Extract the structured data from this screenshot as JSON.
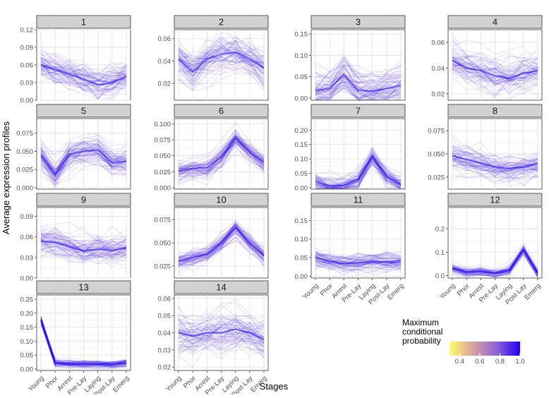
{
  "chart_data": {
    "type": "line",
    "ylabel": "Average expression profiles",
    "xlabel": "Stages",
    "categories": [
      "Young",
      "Phor",
      "Arrest",
      "Pre-Lay",
      "Laying",
      "Post-Lay",
      "Emerg"
    ],
    "legend": {
      "title": [
        "Maximum",
        "conditional",
        "probability"
      ],
      "ticks": [
        "0.4",
        "0.6",
        "0.8",
        "1.0"
      ],
      "tick_values": [
        0.4,
        0.6,
        0.8,
        1.0
      ],
      "range": [
        0.3,
        1.0
      ],
      "placement": "bottom-right",
      "colors": [
        "#ffff66",
        "#d8a0a0",
        "#8f62d6",
        "#2200ee"
      ]
    },
    "panels": [
      {
        "id": "1",
        "ylim": [
          0,
          0.12
        ],
        "yticks": [
          0.0,
          0.03,
          0.06,
          0.09,
          0.12
        ],
        "ytick_labels": [
          "0.00",
          "0.03",
          "0.06",
          "0.09",
          "0.12"
        ],
        "mean": [
          0.06,
          0.052,
          0.044,
          0.036,
          0.026,
          0.03,
          0.04
        ],
        "spread": 0.016,
        "xticks": false
      },
      {
        "id": "2",
        "ylim": [
          0.005,
          0.068
        ],
        "yticks": [
          0.02,
          0.04,
          0.06
        ],
        "ytick_labels": [
          "0.02",
          "0.04",
          "0.06"
        ],
        "mean": [
          0.042,
          0.03,
          0.042,
          0.046,
          0.048,
          0.042,
          0.034
        ],
        "spread": 0.011,
        "xticks": false
      },
      {
        "id": "3",
        "ylim": [
          -0.005,
          0.16
        ],
        "yticks": [
          0.0,
          0.05,
          0.1,
          0.15
        ],
        "ytick_labels": [
          "0.00",
          "0.05",
          "0.10",
          "0.15"
        ],
        "mean": [
          0.018,
          0.022,
          0.055,
          0.018,
          0.016,
          0.022,
          0.03
        ],
        "spread": 0.025,
        "xticks": false
      },
      {
        "id": "4",
        "ylim": [
          0.015,
          0.07
        ],
        "yticks": [
          0.02,
          0.04,
          0.06
        ],
        "ytick_labels": [
          "0.02",
          "0.04",
          "0.06"
        ],
        "mean": [
          0.046,
          0.04,
          0.038,
          0.034,
          0.032,
          0.036,
          0.038
        ],
        "spread": 0.008,
        "xticks": false
      },
      {
        "id": "5",
        "ylim": [
          -0.002,
          0.095
        ],
        "yticks": [
          0.0,
          0.025,
          0.05,
          0.075
        ],
        "ytick_labels": [
          "0.000",
          "0.025",
          "0.050",
          "0.075"
        ],
        "mean": [
          0.044,
          0.018,
          0.046,
          0.05,
          0.052,
          0.034,
          0.036
        ],
        "spread": 0.012,
        "xticks": false
      },
      {
        "id": "6",
        "ylim": [
          -0.002,
          0.108
        ],
        "yticks": [
          0.0,
          0.025,
          0.05,
          0.075,
          0.1
        ],
        "ytick_labels": [
          "0.000",
          "0.025",
          "0.050",
          "0.075",
          "0.100"
        ],
        "mean": [
          0.026,
          0.03,
          0.032,
          0.048,
          0.078,
          0.056,
          0.04
        ],
        "spread": 0.01,
        "xticks": false
      },
      {
        "id": "7",
        "ylim": [
          -0.005,
          0.24
        ],
        "yticks": [
          0.0,
          0.05,
          0.1,
          0.15,
          0.2
        ],
        "ytick_labels": [
          "0.00",
          "0.05",
          "0.10",
          "0.15",
          "0.20"
        ],
        "mean": [
          0.02,
          0.006,
          0.008,
          0.03,
          0.11,
          0.04,
          0.01
        ],
        "spread": 0.022,
        "xticks": false
      },
      {
        "id": "8",
        "ylim": [
          0.012,
          0.088
        ],
        "yticks": [
          0.025,
          0.05,
          0.075
        ],
        "ytick_labels": [
          "0.025",
          "0.050",
          "0.075"
        ],
        "mean": [
          0.048,
          0.044,
          0.04,
          0.036,
          0.034,
          0.036,
          0.04
        ],
        "spread": 0.009,
        "xticks": false
      },
      {
        "id": "9",
        "ylim": [
          0.0,
          0.103
        ],
        "yticks": [
          0.0,
          0.03,
          0.06,
          0.09
        ],
        "ytick_labels": [
          "0.00",
          "0.03",
          "0.06",
          "0.09"
        ],
        "mean": [
          0.054,
          0.052,
          0.046,
          0.04,
          0.042,
          0.04,
          0.044
        ],
        "spread": 0.013,
        "xticks": false
      },
      {
        "id": "10",
        "ylim": [
          0.012,
          0.088
        ],
        "yticks": [
          0.025,
          0.05,
          0.075
        ],
        "ytick_labels": [
          "0.025",
          "0.050",
          "0.075"
        ],
        "mean": [
          0.03,
          0.034,
          0.038,
          0.05,
          0.066,
          0.05,
          0.036
        ],
        "spread": 0.006,
        "xticks": false
      },
      {
        "id": "11",
        "ylim": [
          -0.005,
          0.185
        ],
        "yticks": [
          0.0,
          0.05,
          0.1,
          0.15
        ],
        "ytick_labels": [
          "0.00",
          "0.05",
          "0.10",
          "0.15"
        ],
        "mean": [
          0.05,
          0.04,
          0.034,
          0.036,
          0.04,
          0.038,
          0.038
        ],
        "spread": 0.014,
        "xticks": true
      },
      {
        "id": "12",
        "ylim": [
          -0.01,
          0.29
        ],
        "yticks": [
          0.0,
          0.1,
          0.2
        ],
        "ytick_labels": [
          "0.0",
          "0.1",
          "0.2"
        ],
        "mean": [
          0.032,
          0.016,
          0.018,
          0.01,
          0.022,
          0.11,
          0.012
        ],
        "spread": 0.012,
        "xticks": true
      },
      {
        "id": "13",
        "ylim": [
          -0.005,
          0.265
        ],
        "yticks": [
          0.0,
          0.05,
          0.1,
          0.15,
          0.2,
          0.25
        ],
        "ytick_labels": [
          "0.00",
          "0.05",
          "0.10",
          "0.15",
          "0.20",
          "0.25"
        ],
        "mean": [
          0.175,
          0.022,
          0.018,
          0.018,
          0.018,
          0.016,
          0.022
        ],
        "spread": 0.008,
        "xticks": true
      },
      {
        "id": "14",
        "ylim": [
          0.018,
          0.062
        ],
        "yticks": [
          0.02,
          0.03,
          0.04,
          0.05,
          0.06
        ],
        "ytick_labels": [
          "0.02",
          "0.03",
          "0.04",
          "0.05",
          "0.06"
        ],
        "mean": [
          0.04,
          0.038,
          0.04,
          0.04,
          0.042,
          0.04,
          0.036
        ],
        "spread": 0.007,
        "xticks": true
      }
    ]
  }
}
